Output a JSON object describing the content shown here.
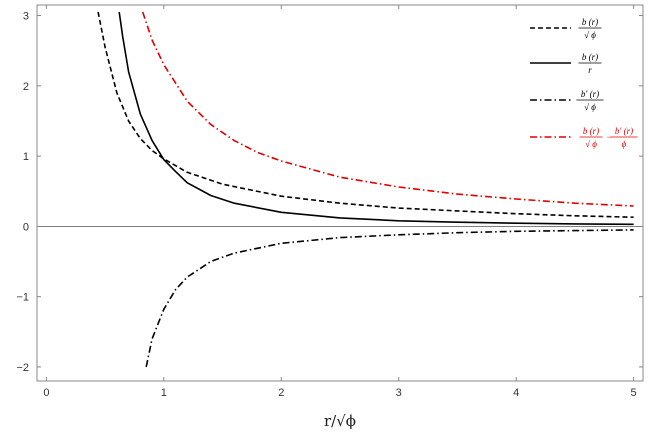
{
  "chart_data": {
    "type": "line",
    "title": "",
    "xlabel": "r/√ϕ",
    "ylabel": "",
    "xlim": [
      -0.08,
      5.08
    ],
    "ylim": [
      -2.2,
      3.15
    ],
    "x_ticks": [
      0,
      1,
      2,
      3,
      4,
      5
    ],
    "y_ticks": [
      -2,
      -1,
      0,
      1,
      2,
      3
    ],
    "grid": false,
    "frame": true,
    "zero_line": true,
    "legend_position": "top-right",
    "series": [
      {
        "legend": {
          "num": "b (r)",
          "den": "√ ϕ"
        },
        "style": "dashed",
        "color": "#000000",
        "points": [
          [
            0.44,
            3.05
          ],
          [
            0.5,
            2.55
          ],
          [
            0.6,
            1.9
          ],
          [
            0.7,
            1.5
          ],
          [
            0.8,
            1.25
          ],
          [
            0.9,
            1.08
          ],
          [
            1.0,
            0.96
          ],
          [
            1.2,
            0.77
          ],
          [
            1.5,
            0.6
          ],
          [
            2.0,
            0.43
          ],
          [
            2.5,
            0.33
          ],
          [
            3.0,
            0.26
          ],
          [
            3.5,
            0.22
          ],
          [
            4.0,
            0.18
          ],
          [
            4.5,
            0.15
          ],
          [
            5.0,
            0.13
          ]
        ]
      },
      {
        "legend": {
          "num": "b (r)",
          "den": "r"
        },
        "style": "solid",
        "color": "#000000",
        "points": [
          [
            0.62,
            3.05
          ],
          [
            0.65,
            2.7
          ],
          [
            0.7,
            2.2
          ],
          [
            0.8,
            1.6
          ],
          [
            0.9,
            1.22
          ],
          [
            1.0,
            0.95
          ],
          [
            1.1,
            0.78
          ],
          [
            1.2,
            0.62
          ],
          [
            1.4,
            0.44
          ],
          [
            1.6,
            0.33
          ],
          [
            2.0,
            0.2
          ],
          [
            2.5,
            0.12
          ],
          [
            3.0,
            0.08
          ],
          [
            3.5,
            0.06
          ],
          [
            4.0,
            0.045
          ],
          [
            4.5,
            0.035
          ],
          [
            5.0,
            0.03
          ]
        ]
      },
      {
        "legend": {
          "num": "b′ (r)",
          "den": "√ ϕ"
        },
        "style": "dash-dot",
        "color": "#000000",
        "points": [
          [
            0.85,
            -2.0
          ],
          [
            0.9,
            -1.6
          ],
          [
            1.0,
            -1.18
          ],
          [
            1.1,
            -0.9
          ],
          [
            1.2,
            -0.72
          ],
          [
            1.4,
            -0.5
          ],
          [
            1.6,
            -0.38
          ],
          [
            2.0,
            -0.24
          ],
          [
            2.5,
            -0.16
          ],
          [
            3.0,
            -0.12
          ],
          [
            3.5,
            -0.09
          ],
          [
            4.0,
            -0.07
          ],
          [
            4.5,
            -0.06
          ],
          [
            5.0,
            -0.05
          ]
        ]
      },
      {
        "legend": {
          "num1": "b (r)",
          "den1": "√ ϕ",
          "op": "−",
          "num2": "b′ (r)",
          "den2": "ϕ"
        },
        "style": "dash-dot",
        "color": "#e00000",
        "points": [
          [
            0.82,
            3.05
          ],
          [
            0.9,
            2.65
          ],
          [
            1.0,
            2.3
          ],
          [
            1.2,
            1.78
          ],
          [
            1.4,
            1.45
          ],
          [
            1.6,
            1.22
          ],
          [
            1.8,
            1.05
          ],
          [
            2.0,
            0.93
          ],
          [
            2.5,
            0.7
          ],
          [
            3.0,
            0.56
          ],
          [
            3.5,
            0.46
          ],
          [
            4.0,
            0.39
          ],
          [
            4.5,
            0.33
          ],
          [
            5.0,
            0.29
          ]
        ]
      }
    ]
  }
}
